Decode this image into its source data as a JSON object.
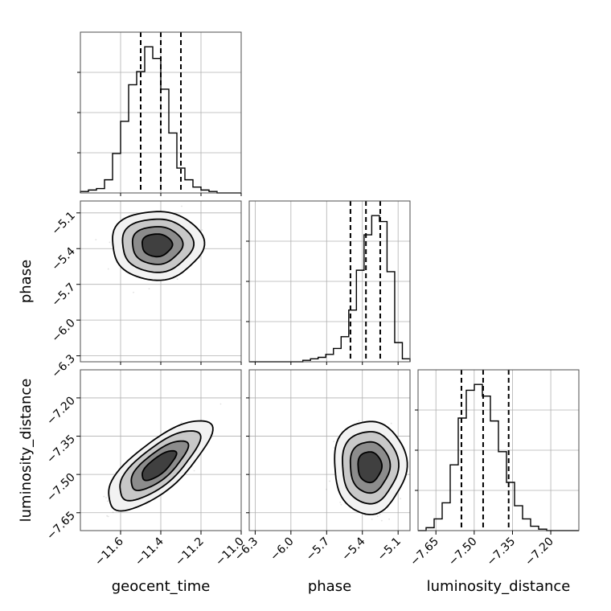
{
  "chart_data": {
    "type": "corner",
    "parameters": [
      {
        "name": "geocent_time",
        "label": "geocent_time",
        "ticks": [
          -11.6,
          -11.4,
          -11.2,
          -11.0
        ],
        "range": [
          -11.8,
          -11.0
        ],
        "quantiles": [
          -11.5,
          -11.4,
          -11.3
        ],
        "hist": [
          1,
          2,
          3,
          9,
          27,
          49,
          74,
          83,
          100,
          92,
          71,
          41,
          17,
          9,
          4,
          2,
          1,
          0,
          0,
          0
        ]
      },
      {
        "name": "phase",
        "label": "phase",
        "ticks": [
          -6.3,
          -6.0,
          -5.7,
          -5.4,
          -5.1
        ],
        "range": [
          -6.35,
          -5.0
        ],
        "quantiles": [
          -5.5,
          -5.37,
          -5.25
        ],
        "hist": [
          0,
          0,
          0,
          0,
          0,
          0,
          0,
          1,
          2,
          3,
          5,
          9,
          17,
          35,
          62,
          86,
          99,
          95,
          61,
          13,
          2
        ]
      },
      {
        "name": "luminosity_distance",
        "label": "luminosity_distance",
        "ticks": [
          -7.65,
          -7.5,
          -7.35,
          -7.2
        ],
        "range": [
          -7.72,
          -7.09
        ],
        "quantiles": [
          -7.55,
          -7.465,
          -7.365
        ],
        "hist": [
          0,
          2,
          8,
          19,
          45,
          77,
          96,
          100,
          92,
          75,
          54,
          33,
          17,
          8,
          3,
          1,
          0,
          0,
          0,
          0
        ]
      }
    ],
    "tick_labels": {
      "geocent_time": [
        "−11.6",
        "−11.4",
        "−11.2",
        "−11.0"
      ],
      "phase": [
        "−6.3",
        "−6.0",
        "−5.7",
        "−5.4",
        "−5.1"
      ],
      "luminosity_distance": [
        "−7.65",
        "−7.50",
        "−7.35",
        "−7.20"
      ]
    },
    "pairs": [
      {
        "x": "geocent_time",
        "y": "phase",
        "mean": [
          -11.42,
          -5.37
        ],
        "sigma": [
          0.075,
          0.095
        ],
        "rho": 0.0
      },
      {
        "x": "geocent_time",
        "y": "luminosity_distance",
        "mean": [
          -11.41,
          -7.465
        ],
        "sigma": [
          0.085,
          0.058
        ],
        "rho": 0.75
      },
      {
        "x": "phase",
        "y": "luminosity_distance",
        "mean": [
          -5.34,
          -7.47
        ],
        "sigma": [
          0.1,
          0.06
        ],
        "rho": 0.0
      }
    ],
    "grid": true,
    "colors": {
      "line": "#000000",
      "samples": "#777777",
      "grid": "#b0b0b0"
    }
  }
}
